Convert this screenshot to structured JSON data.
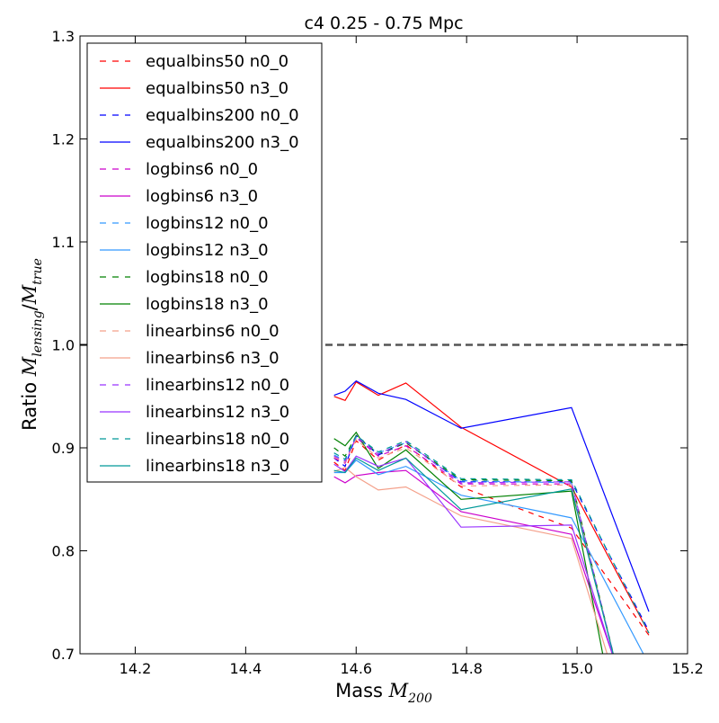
{
  "chart_data": {
    "type": "line",
    "title": "c4 0.25 - 0.75 Mpc",
    "xlabel": {
      "prefix": "Mass ",
      "symbol": "M",
      "sub": "200"
    },
    "ylabel": {
      "prefix": "Ratio ",
      "num": "M",
      "num_sub": "lensing",
      "den": "M",
      "den_sub": "true"
    },
    "xlim": [
      14.1,
      15.2
    ],
    "ylim": [
      0.7,
      1.3
    ],
    "xticks": [
      14.2,
      14.4,
      14.6,
      14.8,
      15.0,
      15.2
    ],
    "xtick_labels": [
      "14.2",
      "14.4",
      "14.6",
      "14.8",
      "15.0",
      "15.2"
    ],
    "yticks": [
      0.7,
      0.8,
      0.9,
      1.0,
      1.1,
      1.2,
      1.3
    ],
    "ytick_labels": [
      "0.7",
      "0.8",
      "0.9",
      "1.0",
      "1.1",
      "1.2",
      "1.3"
    ],
    "reference_line": {
      "y": 1.0,
      "style": "dashed",
      "color": "#555555"
    },
    "grid": false,
    "legend_position": "top-left",
    "series": [
      {
        "name": "equalbins50 n0_0",
        "color": "#ff0000",
        "dashed": true,
        "x": [
          14.56,
          14.58,
          14.6,
          14.64,
          14.69,
          14.79,
          14.99,
          15.13
        ],
        "y": [
          0.886,
          0.878,
          0.907,
          0.888,
          0.903,
          0.862,
          0.822,
          0.718
        ]
      },
      {
        "name": "equalbins50 n3_0",
        "color": "#ff0000",
        "dashed": false,
        "x": [
          14.56,
          14.58,
          14.6,
          14.64,
          14.69,
          14.79,
          14.99,
          15.13
        ],
        "y": [
          0.95,
          0.946,
          0.964,
          0.951,
          0.963,
          0.92,
          0.862,
          0.72
        ]
      },
      {
        "name": "equalbins200 n0_0",
        "color": "#0000ff",
        "dashed": true,
        "x": [
          14.56,
          14.58,
          14.6,
          14.64,
          14.69,
          14.79,
          14.99,
          15.13
        ],
        "y": [
          0.89,
          0.882,
          0.912,
          0.893,
          0.905,
          0.867,
          0.867,
          0.722
        ]
      },
      {
        "name": "equalbins200 n3_0",
        "color": "#0000ff",
        "dashed": false,
        "x": [
          14.56,
          14.58,
          14.6,
          14.64,
          14.69,
          14.79,
          14.99,
          15.13
        ],
        "y": [
          0.951,
          0.955,
          0.965,
          0.953,
          0.947,
          0.919,
          0.939,
          0.741
        ]
      },
      {
        "name": "logbins6 n0_0",
        "color": "#cc00cc",
        "dashed": true,
        "x": [
          14.56,
          14.58,
          14.6,
          14.64,
          14.69,
          14.79,
          14.99,
          15.07
        ],
        "y": [
          0.89,
          0.885,
          0.91,
          0.892,
          0.902,
          0.865,
          0.865,
          0.69
        ]
      },
      {
        "name": "logbins6 n3_0",
        "color": "#cc00cc",
        "dashed": false,
        "x": [
          14.56,
          14.58,
          14.6,
          14.64,
          14.69,
          14.79,
          14.99,
          15.07
        ],
        "y": [
          0.872,
          0.866,
          0.873,
          0.876,
          0.878,
          0.838,
          0.816,
          0.69
        ]
      },
      {
        "name": "logbins12 n0_0",
        "color": "#3399ff",
        "dashed": true,
        "x": [
          14.56,
          14.58,
          14.6,
          14.64,
          14.69,
          14.79,
          14.99,
          15.07
        ],
        "y": [
          0.893,
          0.888,
          0.91,
          0.895,
          0.905,
          0.868,
          0.866,
          0.69
        ]
      },
      {
        "name": "logbins12 n3_0",
        "color": "#3399ff",
        "dashed": false,
        "x": [
          14.56,
          14.58,
          14.6,
          14.64,
          14.69,
          14.79,
          14.99,
          15.12
        ],
        "y": [
          0.876,
          0.876,
          0.888,
          0.874,
          0.882,
          0.854,
          0.832,
          0.7
        ]
      },
      {
        "name": "logbins18 n0_0",
        "color": "#008000",
        "dashed": true,
        "x": [
          14.56,
          14.58,
          14.6,
          14.64,
          14.69,
          14.79,
          14.99,
          15.07
        ],
        "y": [
          0.9,
          0.892,
          0.912,
          0.894,
          0.905,
          0.869,
          0.868,
          0.69
        ]
      },
      {
        "name": "logbins18 n3_0",
        "color": "#008000",
        "dashed": false,
        "x": [
          14.56,
          14.58,
          14.6,
          14.64,
          14.69,
          14.79,
          14.99,
          15.05
        ],
        "y": [
          0.909,
          0.902,
          0.915,
          0.88,
          0.898,
          0.85,
          0.858,
          0.69
        ]
      },
      {
        "name": "linearbins6 n0_0",
        "color": "#f4a08a",
        "dashed": true,
        "x": [
          14.56,
          14.58,
          14.6,
          14.64,
          14.69,
          14.79,
          14.99,
          15.07
        ],
        "y": [
          0.891,
          0.886,
          0.908,
          0.89,
          0.9,
          0.863,
          0.864,
          0.69
        ]
      },
      {
        "name": "linearbins6 n3_0",
        "color": "#f4a08a",
        "dashed": false,
        "x": [
          14.56,
          14.58,
          14.6,
          14.64,
          14.69,
          14.79,
          14.99,
          15.06
        ],
        "y": [
          0.877,
          0.881,
          0.872,
          0.859,
          0.862,
          0.834,
          0.812,
          0.69
        ]
      },
      {
        "name": "linearbins12 n0_0",
        "color": "#9933ff",
        "dashed": true,
        "x": [
          14.56,
          14.58,
          14.6,
          14.64,
          14.69,
          14.79,
          14.99,
          15.07
        ],
        "y": [
          0.892,
          0.887,
          0.911,
          0.894,
          0.906,
          0.866,
          0.867,
          0.69
        ]
      },
      {
        "name": "linearbins12 n3_0",
        "color": "#9933ff",
        "dashed": false,
        "x": [
          14.56,
          14.58,
          14.6,
          14.64,
          14.69,
          14.79,
          14.99,
          15.07
        ],
        "y": [
          0.884,
          0.877,
          0.892,
          0.882,
          0.89,
          0.823,
          0.825,
          0.69
        ]
      },
      {
        "name": "linearbins18 n0_0",
        "color": "#009999",
        "dashed": true,
        "x": [
          14.56,
          14.58,
          14.6,
          14.64,
          14.69,
          14.79,
          14.99,
          15.13
        ],
        "y": [
          0.895,
          0.889,
          0.912,
          0.896,
          0.907,
          0.87,
          0.869,
          0.72
        ]
      },
      {
        "name": "linearbins18 n3_0",
        "color": "#009999",
        "dashed": false,
        "x": [
          14.56,
          14.58,
          14.6,
          14.64,
          14.69,
          14.79,
          14.99,
          15.07
        ],
        "y": [
          0.878,
          0.876,
          0.89,
          0.878,
          0.89,
          0.84,
          0.86,
          0.69
        ]
      }
    ]
  }
}
